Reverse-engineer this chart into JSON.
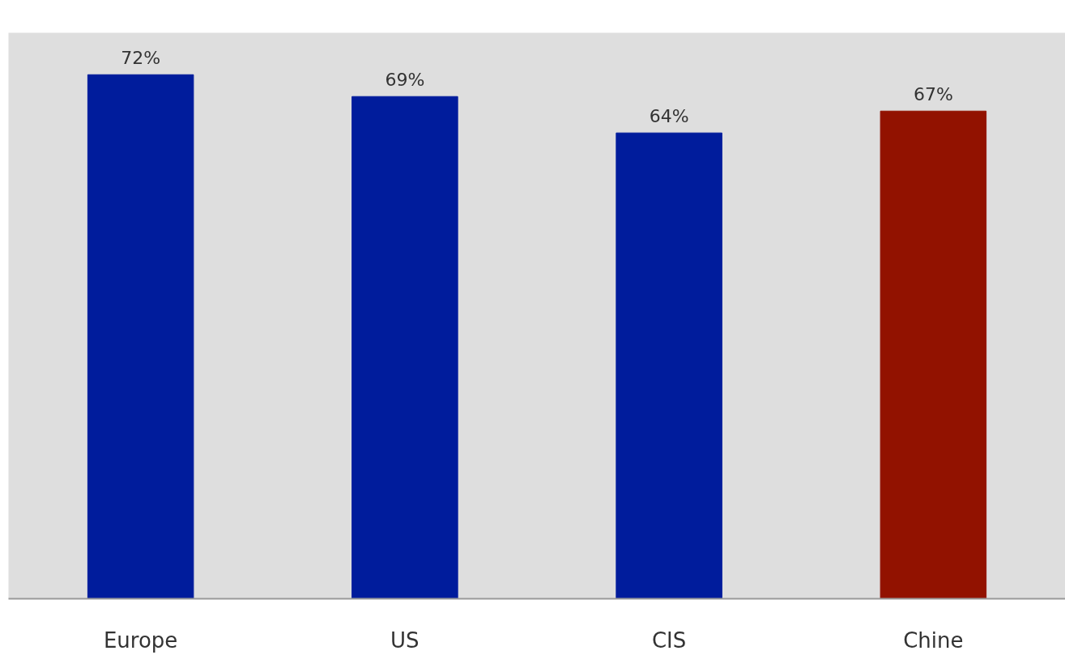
{
  "chart_data": {
    "type": "bar",
    "categories": [
      "Europe",
      "US",
      "CIS",
      "Chine"
    ],
    "values": [
      72,
      69,
      64,
      67
    ],
    "colors": [
      "#001c9c",
      "#001c9c",
      "#001c9c",
      "#921200"
    ],
    "value_labels": [
      "72%",
      "69%",
      "64%",
      "67%"
    ],
    "grid": false
  }
}
